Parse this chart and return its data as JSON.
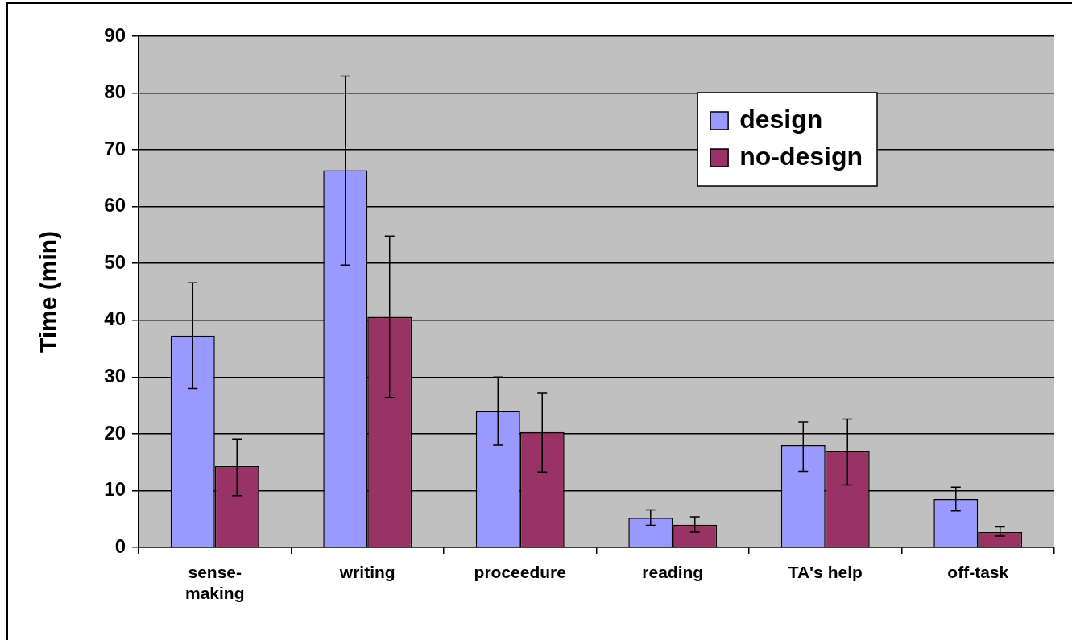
{
  "chart_data": {
    "type": "bar",
    "ylabel": "Time (min)",
    "categories": [
      "sense-making",
      "writing",
      "proceedure",
      "reading",
      "TA's help",
      "off-task"
    ],
    "series": [
      {
        "name": "design",
        "color": "#9999ff",
        "values": [
          37.3,
          66.4,
          24,
          5.2,
          18,
          8.5
        ],
        "errors": [
          [
            28,
            46.6
          ],
          [
            49.7,
            83
          ],
          [
            18,
            30
          ],
          [
            3.9,
            6.6
          ],
          [
            13.4,
            22.1
          ],
          [
            6.4,
            10.6
          ]
        ]
      },
      {
        "name": "no-design",
        "color": "#993366",
        "values": [
          14.3,
          40.6,
          20.3,
          4,
          17,
          2.7
        ],
        "errors": [
          [
            9.1,
            19.1
          ],
          [
            26.4,
            54.8
          ],
          [
            13.3,
            27.2
          ],
          [
            2.7,
            5.4
          ],
          [
            11,
            22.6
          ],
          [
            2,
            3.6
          ]
        ]
      }
    ],
    "ylim": [
      0,
      90
    ],
    "yticks": [
      0,
      10,
      20,
      30,
      40,
      50,
      60,
      70,
      80,
      90
    ],
    "grid": "y",
    "legend": "top right"
  }
}
